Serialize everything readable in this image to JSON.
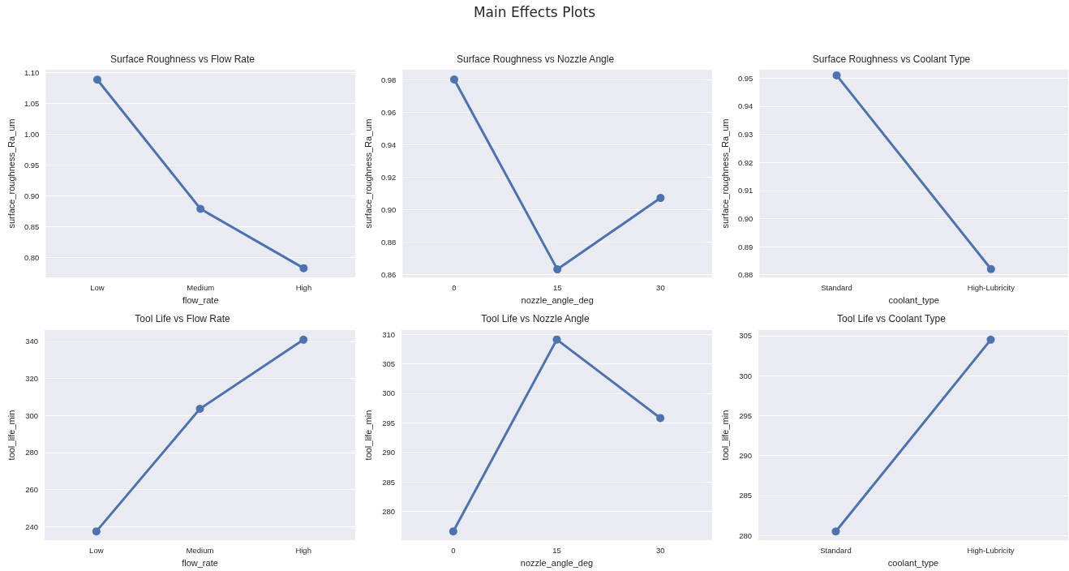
{
  "chart_data": [
    {
      "type": "other",
      "title": "Main Effects Plots"
    },
    {
      "type": "line",
      "title": "Surface Roughness vs Flow Rate",
      "xlabel": "flow_rate",
      "ylabel": "surface_roughness_Ra_um",
      "categories": [
        "Low",
        "Medium",
        "High"
      ],
      "values": [
        1.088,
        0.879,
        0.783
      ],
      "color": "#4c72b0",
      "ylim": [
        0.768,
        1.104
      ],
      "yticks": [
        {
          "value": 0.8,
          "label": "0.80"
        },
        0.85,
        {
          "value": 0.9,
          "label": "0.90"
        },
        0.95,
        {
          "value": 1.0,
          "label": "1.00"
        },
        1.05,
        {
          "value": 1.1,
          "label": "1.10"
        }
      ],
      "grid": "y",
      "marker": "circle"
    },
    {
      "type": "line",
      "title": "Surface Roughness vs Nozzle Angle",
      "xlabel": "nozzle_angle_deg",
      "ylabel": "surface_roughness_Ra_um",
      "categories": [
        "0",
        "15",
        "30"
      ],
      "values": [
        0.98,
        0.863,
        0.907
      ],
      "color": "#4c72b0",
      "ylim": [
        0.858,
        0.986
      ],
      "yticks": [
        0.86,
        0.88,
        {
          "value": 0.9,
          "label": "0.90"
        },
        0.92,
        0.94,
        0.96,
        0.98
      ],
      "grid": "y",
      "marker": "circle"
    },
    {
      "type": "line",
      "title": "Surface Roughness vs Coolant Type",
      "xlabel": "coolant_type",
      "ylabel": "surface_roughness_Ra_um",
      "categories": [
        "Standard",
        "High-Lubricity"
      ],
      "values": [
        0.951,
        0.882
      ],
      "color": "#4c72b0",
      "ylim": [
        0.879,
        0.953
      ],
      "yticks": [
        0.88,
        0.89,
        {
          "value": 0.9,
          "label": "0.90"
        },
        0.91,
        0.92,
        0.93,
        0.94,
        0.95
      ],
      "grid": "y",
      "marker": "circle"
    },
    {
      "type": "line",
      "title": "Tool Life vs Flow Rate",
      "xlabel": "flow_rate",
      "ylabel": "tool_life_min",
      "categories": [
        "Low",
        "Medium",
        "High"
      ],
      "values": [
        237.4,
        303.6,
        340.9
      ],
      "color": "#4c72b0",
      "ylim": [
        232.6,
        346.1
      ],
      "yticks": [
        240,
        260,
        280,
        300,
        320,
        340
      ],
      "grid": "y",
      "marker": "circle"
    },
    {
      "type": "line",
      "title": "Tool Life vs Nozzle Angle",
      "xlabel": "nozzle_angle_deg",
      "ylabel": "tool_life_min",
      "categories": [
        "0",
        "15",
        "30"
      ],
      "values": [
        276.6,
        309.1,
        295.8
      ],
      "color": "#4c72b0",
      "ylim": [
        275.1,
        310.7
      ],
      "yticks": [
        280,
        285,
        290,
        295,
        300,
        305,
        310
      ],
      "grid": "y",
      "marker": "circle"
    },
    {
      "type": "line",
      "title": "Tool Life vs Coolant Type",
      "xlabel": "coolant_type",
      "ylabel": "tool_life_min",
      "categories": [
        "Standard",
        "High-Lubricity"
      ],
      "values": [
        280.5,
        304.5
      ],
      "color": "#4c72b0",
      "ylim": [
        279.4,
        305.7
      ],
      "yticks": [
        280,
        285,
        290,
        295,
        300,
        305
      ],
      "grid": "y",
      "marker": "circle"
    }
  ]
}
